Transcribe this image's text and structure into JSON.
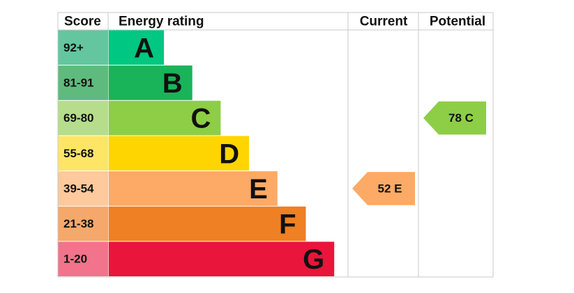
{
  "header": {
    "score": "Score",
    "rating": "Energy rating",
    "current": "Current",
    "potential": "Potential"
  },
  "rows": [
    {
      "score": "92+",
      "letter": "A",
      "color": "#00c781",
      "score_color": "#64c69f"
    },
    {
      "score": "81-91",
      "letter": "B",
      "color": "#19b459",
      "score_color": "#5fba7d"
    },
    {
      "score": "69-80",
      "letter": "C",
      "color": "#8dce46",
      "score_color": "#b6dd8b",
      "potential": "78 C"
    },
    {
      "score": "55-68",
      "letter": "D",
      "color": "#ffd500",
      "score_color": "#ffe566"
    },
    {
      "score": "39-54",
      "letter": "E",
      "color": "#fcaa65",
      "score_color": "#fdc99d",
      "current": "52 E"
    },
    {
      "score": "21-38",
      "letter": "F",
      "color": "#ef8023",
      "score_color": "#f4a86b"
    },
    {
      "score": "1-20",
      "letter": "G",
      "color": "#e9153b",
      "score_color": "#f2738b"
    }
  ]
}
